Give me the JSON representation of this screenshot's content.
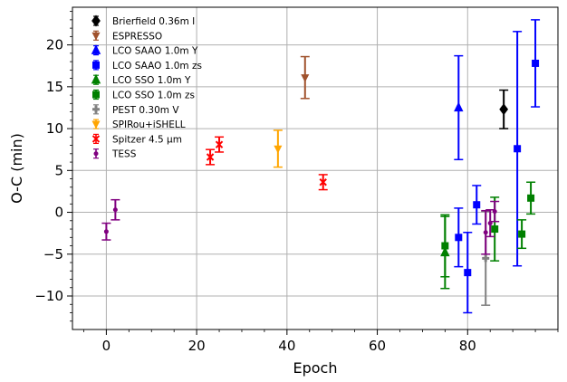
{
  "chart_data": {
    "type": "scatter",
    "title": "",
    "xlabel": "Epoch",
    "ylabel": "O-C (min)",
    "xlim": [
      -7.5,
      100
    ],
    "ylim": [
      -14,
      24.5
    ],
    "grid": true,
    "legend_position": "top-left",
    "x_ticks": [
      0,
      20,
      40,
      60,
      80
    ],
    "y_ticks": [
      -10,
      -5,
      0,
      5,
      10,
      15,
      20
    ],
    "series": [
      {
        "name": "Brierfield 0.36m I",
        "color": "#000000",
        "marker": "diamond",
        "points": [
          {
            "x": 88,
            "y": 12.3,
            "err": 2.3
          }
        ]
      },
      {
        "name": "ESPRESSO",
        "color": "#a0522d",
        "marker": "triangle-down",
        "points": [
          {
            "x": 44,
            "y": 16.1,
            "err": 2.5
          }
        ]
      },
      {
        "name": "LCO SAAO 1.0m Y",
        "color": "#0000ff",
        "marker": "triangle-up",
        "points": [
          {
            "x": 78,
            "y": 12.5,
            "err": 6.2
          }
        ]
      },
      {
        "name": "LCO SAAO 1.0m zs",
        "color": "#0000ff",
        "marker": "square",
        "points": [
          {
            "x": 78,
            "y": -3.0,
            "err": 3.5
          },
          {
            "x": 80,
            "y": -7.2,
            "err": 4.8
          },
          {
            "x": 82,
            "y": 0.9,
            "err": 2.3
          },
          {
            "x": 91,
            "y": 7.6,
            "err": 14.0
          },
          {
            "x": 95,
            "y": 17.8,
            "err": 5.2
          }
        ]
      },
      {
        "name": "LCO SSO 1.0m Y",
        "color": "#008000",
        "marker": "triangle-up",
        "points": [
          {
            "x": 75,
            "y": -4.8,
            "err": 4.3
          }
        ]
      },
      {
        "name": "LCO SSO 1.0m zs",
        "color": "#008000",
        "marker": "square",
        "points": [
          {
            "x": 75,
            "y": -4.0,
            "err": 3.7
          },
          {
            "x": 86,
            "y": -2.0,
            "err": 3.8
          },
          {
            "x": 92,
            "y": -2.6,
            "err": 1.7
          },
          {
            "x": 94,
            "y": 1.7,
            "err": 1.9
          }
        ]
      },
      {
        "name": "PEST 0.30m V",
        "color": "#808080",
        "marker": "plus",
        "points": [
          {
            "x": 84,
            "y": -5.5,
            "err": 5.6
          }
        ]
      },
      {
        "name": "SPIRou+iSHELL",
        "color": "#ffa500",
        "marker": "triangle-down",
        "points": [
          {
            "x": 38,
            "y": 7.6,
            "err": 2.2
          }
        ]
      },
      {
        "name": "Spitzer 4.5 μm",
        "color": "#ff0000",
        "marker": "x",
        "points": [
          {
            "x": 23,
            "y": 6.6,
            "err": 0.9
          },
          {
            "x": 25,
            "y": 8.1,
            "err": 0.9
          },
          {
            "x": 48,
            "y": 3.6,
            "err": 0.9
          }
        ]
      },
      {
        "name": "TESS",
        "color": "#800080",
        "marker": "dot",
        "points": [
          {
            "x": 0,
            "y": -2.3,
            "err": 1.0
          },
          {
            "x": 2,
            "y": 0.3,
            "err": 1.2
          },
          {
            "x": 84,
            "y": -2.4,
            "err": 2.6
          },
          {
            "x": 85,
            "y": -1.3,
            "err": 1.6
          },
          {
            "x": 86,
            "y": 0.1,
            "err": 1.2
          }
        ]
      }
    ]
  }
}
